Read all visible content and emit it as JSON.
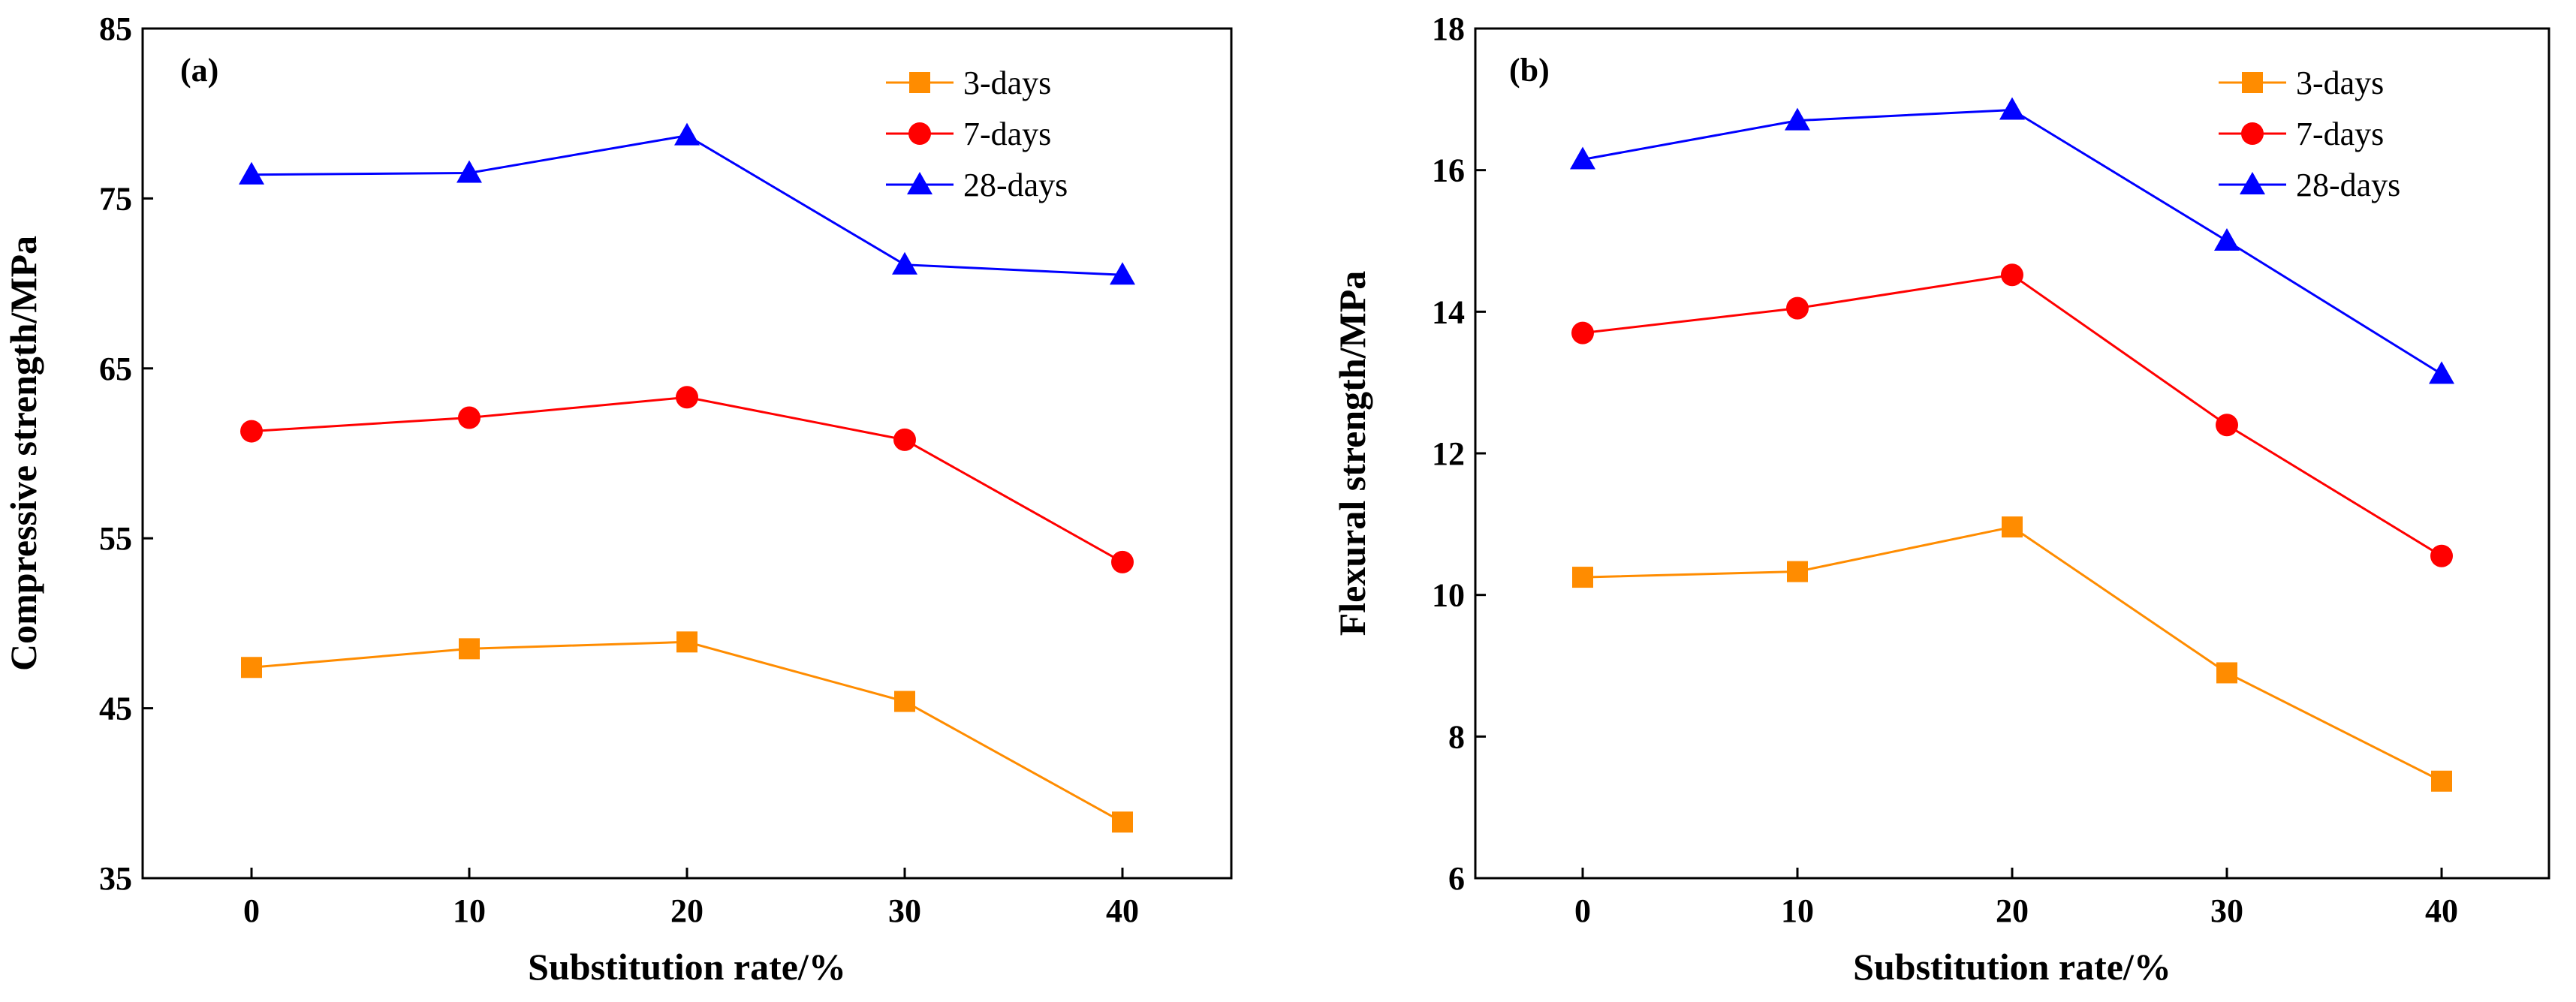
{
  "chart_data": [
    {
      "type": "line",
      "panel_label": "(a)",
      "xlabel": "Substitution rate/%",
      "ylabel": "Compressive strength/MPa",
      "x": [
        0,
        10,
        20,
        30,
        40
      ],
      "x_ticks": [
        "0",
        "10",
        "20",
        "30",
        "40"
      ],
      "xlim": [
        -5,
        45
      ],
      "ylim": [
        35,
        85
      ],
      "y_ticks": [
        "35",
        "45",
        "55",
        "65",
        "75",
        "85"
      ],
      "y_tick_values": [
        35,
        45,
        55,
        65,
        75,
        85
      ],
      "legend_position": "top-right",
      "series": [
        {
          "name": "3-days",
          "color": "#FF8C00",
          "marker": "square",
          "values": [
            47.4,
            48.5,
            48.9,
            45.4,
            38.3
          ]
        },
        {
          "name": "7-days",
          "color": "#FF0000",
          "marker": "circle",
          "values": [
            61.3,
            62.1,
            63.3,
            60.8,
            53.6
          ]
        },
        {
          "name": "28-days",
          "color": "#0000FF",
          "marker": "triangle",
          "values": [
            76.4,
            76.5,
            78.7,
            71.1,
            70.5
          ]
        }
      ]
    },
    {
      "type": "line",
      "panel_label": "(b)",
      "xlabel": "Substitution rate/%",
      "ylabel": "Flexural strength/MPa",
      "x": [
        0,
        10,
        20,
        30,
        40
      ],
      "x_ticks": [
        "0",
        "10",
        "20",
        "30",
        "40"
      ],
      "xlim": [
        -5,
        45
      ],
      "ylim": [
        6,
        18
      ],
      "y_ticks": [
        "6",
        "8",
        "10",
        "12",
        "14",
        "16",
        "18"
      ],
      "y_tick_values": [
        6,
        8,
        10,
        12,
        14,
        16,
        18
      ],
      "legend_position": "top-right",
      "series": [
        {
          "name": "3-days",
          "color": "#FF8C00",
          "marker": "square",
          "values": [
            10.25,
            10.33,
            10.96,
            8.9,
            7.37
          ]
        },
        {
          "name": "7-days",
          "color": "#FF0000",
          "marker": "circle",
          "values": [
            13.7,
            14.05,
            14.52,
            12.4,
            10.55
          ]
        },
        {
          "name": "28-days",
          "color": "#0000FF",
          "marker": "triangle",
          "values": [
            16.15,
            16.7,
            16.85,
            15.0,
            13.12
          ]
        }
      ]
    }
  ]
}
